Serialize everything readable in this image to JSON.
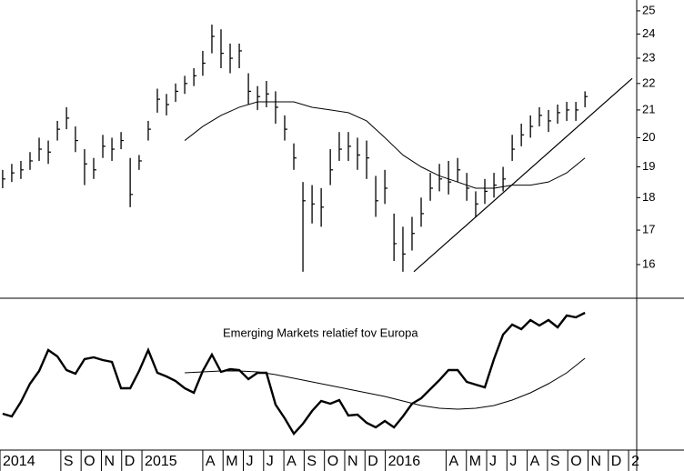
{
  "chart_data": [
    {
      "type": "ohlc",
      "log": true,
      "xlim": [
        -7,
        24.4
      ],
      "ylim": [
        15.08,
        25.48
      ],
      "yticks": [
        16,
        17,
        18,
        19,
        20,
        21,
        22,
        23,
        24,
        25
      ],
      "color": "#000000",
      "x": [
        -6.87,
        -6.42,
        -5.97,
        -5.52,
        -5.07,
        -4.62,
        -4.17,
        -3.72,
        -3.28,
        -2.83,
        -2.38,
        -1.93,
        -1.48,
        -1.03,
        -0.58,
        -0.14,
        0.31,
        0.76,
        1.21,
        1.66,
        2.11,
        2.56,
        3.0,
        3.45,
        3.9,
        4.35,
        4.8,
        5.25,
        5.7,
        6.14,
        6.59,
        7.04,
        7.49,
        7.94,
        8.39,
        8.84,
        9.29,
        9.73,
        10.18,
        10.63,
        11.08,
        11.53,
        11.98,
        12.43,
        12.87,
        13.32,
        13.77,
        14.22,
        14.67,
        15.12,
        15.57,
        16.02,
        16.46,
        16.91,
        17.36,
        17.81,
        18.26,
        18.71,
        19.16,
        19.6,
        20.05,
        20.5,
        20.95,
        21.4,
        21.85
      ],
      "high": [
        18.9,
        19.1,
        19.2,
        19.5,
        20.0,
        19.9,
        20.6,
        21.1,
        20.4,
        19.6,
        19.3,
        20.1,
        20.0,
        20.2,
        19.3,
        19.4,
        20.6,
        21.8,
        21.6,
        22.0,
        22.3,
        22.6,
        23.3,
        24.4,
        24.2,
        23.6,
        23.6,
        22.4,
        21.9,
        22.1,
        21.7,
        20.8,
        19.8,
        18.5,
        18.4,
        18.3,
        19.6,
        20.2,
        20.2,
        20.0,
        19.9,
        18.7,
        18.9,
        17.5,
        17.1,
        17.4,
        18.0,
        18.8,
        19.1,
        19.2,
        19.3,
        18.8,
        18.2,
        18.6,
        18.8,
        19.0,
        20.1,
        20.5,
        20.8,
        21.1,
        21.0,
        21.2,
        21.3,
        21.3,
        21.7
      ],
      "low": [
        18.3,
        18.5,
        18.6,
        18.9,
        19.2,
        19.1,
        19.9,
        20.3,
        19.5,
        18.4,
        18.6,
        19.3,
        19.2,
        19.6,
        17.7,
        18.9,
        19.9,
        20.9,
        20.8,
        21.3,
        21.6,
        21.9,
        22.3,
        23.2,
        22.6,
        22.4,
        22.6,
        21.2,
        21.0,
        21.1,
        20.5,
        19.9,
        18.9,
        15.8,
        17.2,
        17.1,
        18.4,
        19.2,
        19.2,
        18.9,
        18.6,
        17.4,
        17.8,
        16.1,
        15.8,
        16.4,
        17.1,
        17.9,
        18.2,
        18.1,
        18.5,
        17.9,
        17.4,
        17.8,
        18.0,
        18.2,
        19.2,
        19.7,
        20.0,
        20.4,
        20.2,
        20.5,
        20.6,
        20.6,
        21.1
      ],
      "close": [
        18.6,
        18.8,
        18.9,
        19.2,
        19.6,
        19.5,
        20.3,
        20.7,
        19.9,
        19.1,
        18.9,
        19.7,
        19.6,
        19.9,
        18.1,
        19.2,
        20.3,
        21.4,
        21.2,
        21.7,
        22.0,
        22.3,
        22.8,
        23.9,
        23.2,
        23.0,
        23.3,
        21.7,
        21.5,
        21.6,
        21.1,
        20.3,
        19.3,
        17.9,
        17.8,
        17.7,
        18.9,
        19.6,
        19.7,
        19.4,
        19.3,
        17.9,
        18.3,
        16.6,
        16.3,
        16.9,
        17.5,
        18.3,
        18.6,
        18.5,
        18.9,
        18.3,
        17.8,
        18.2,
        18.4,
        18.6,
        19.6,
        20.1,
        20.4,
        20.8,
        20.6,
        20.9,
        21.0,
        21.0,
        21.5
      ],
      "ma": {
        "x": [
          2.11,
          3.0,
          3.9,
          4.8,
          5.7,
          6.59,
          7.49,
          8.39,
          9.29,
          10.18,
          11.08,
          11.98,
          12.87,
          13.77,
          14.67,
          15.57,
          16.46,
          17.36,
          18.26,
          19.16,
          20.05,
          20.95,
          21.85
        ],
        "values": [
          19.9,
          20.4,
          20.8,
          21.1,
          21.3,
          21.3,
          21.3,
          21.1,
          21.0,
          20.9,
          20.6,
          20.0,
          19.4,
          19.0,
          18.7,
          18.5,
          18.3,
          18.3,
          18.4,
          18.4,
          18.5,
          18.8,
          19.3
        ]
      },
      "trendline": {
        "x": [
          13.41,
          24.18
        ],
        "values": [
          15.8,
          22.2
        ]
      }
    },
    {
      "type": "line",
      "annotation": "Emerging Markets relatief tov Europa",
      "xlim": [
        -7,
        24.4
      ],
      "ylim": [
        0,
        160
      ],
      "color": "#000000",
      "x": [
        -6.87,
        -6.42,
        -5.97,
        -5.52,
        -5.07,
        -4.62,
        -4.17,
        -3.72,
        -3.28,
        -2.83,
        -2.38,
        -1.93,
        -1.48,
        -1.03,
        -0.58,
        -0.14,
        0.31,
        0.76,
        1.21,
        1.66,
        2.11,
        2.56,
        3.0,
        3.45,
        3.9,
        4.35,
        4.8,
        5.25,
        5.7,
        6.14,
        6.59,
        7.04,
        7.49,
        7.94,
        8.39,
        8.84,
        9.29,
        9.73,
        10.18,
        10.63,
        11.08,
        11.53,
        11.98,
        12.43,
        12.87,
        13.32,
        13.77,
        14.22,
        14.67,
        15.12,
        15.57,
        16.02,
        16.46,
        16.91,
        17.36,
        17.81,
        18.26,
        18.71,
        19.16,
        19.6,
        20.05,
        20.5,
        20.95,
        21.4,
        21.85
      ],
      "values": [
        35,
        32,
        48,
        68,
        82,
        105,
        98,
        83,
        79,
        95,
        97,
        94,
        92,
        63,
        63,
        82,
        105,
        80,
        76,
        71,
        63,
        58,
        82,
        100,
        81,
        84,
        83,
        73,
        80,
        80,
        45,
        30,
        13,
        24,
        38,
        49,
        46,
        50,
        33,
        34,
        25,
        20,
        27,
        20,
        32,
        46,
        52,
        62,
        72,
        83,
        83,
        70,
        67,
        64,
        95,
        122,
        133,
        128,
        138,
        132,
        138,
        130,
        143,
        141,
        146
      ],
      "ma": {
        "x": [
          2.11,
          3.0,
          3.9,
          4.8,
          5.7,
          6.59,
          7.49,
          8.39,
          9.29,
          10.18,
          11.08,
          11.98,
          12.87,
          13.77,
          14.67,
          15.57,
          16.46,
          17.36,
          18.26,
          19.16,
          20.05,
          20.95,
          21.85
        ],
        "values": [
          80,
          81,
          82,
          82,
          81,
          78,
          74,
          70,
          66,
          62,
          58,
          54,
          49,
          44,
          41,
          40,
          41,
          44,
          50,
          58,
          68,
          80,
          96
        ]
      },
      "xticks": [
        {
          "value": -7,
          "label": "2014"
        },
        {
          "value": -4,
          "label": "S"
        },
        {
          "value": -3,
          "label": "O"
        },
        {
          "value": -2,
          "label": "N"
        },
        {
          "value": -1,
          "label": "D"
        },
        {
          "value": 0,
          "label": "2015"
        },
        {
          "value": 3,
          "label": "A"
        },
        {
          "value": 4,
          "label": "M"
        },
        {
          "value": 5,
          "label": "J"
        },
        {
          "value": 6,
          "label": "J"
        },
        {
          "value": 7,
          "label": "A"
        },
        {
          "value": 8,
          "label": "S"
        },
        {
          "value": 9,
          "label": "O"
        },
        {
          "value": 10,
          "label": "N"
        },
        {
          "value": 11,
          "label": "D"
        },
        {
          "value": 12,
          "label": "2016"
        },
        {
          "value": 15,
          "label": "A"
        },
        {
          "value": 16,
          "label": "M"
        },
        {
          "value": 17,
          "label": "J"
        },
        {
          "value": 18,
          "label": "J"
        },
        {
          "value": 19,
          "label": "A"
        },
        {
          "value": 20,
          "label": "S"
        },
        {
          "value": 21,
          "label": "O"
        },
        {
          "value": 22,
          "label": "N"
        },
        {
          "value": 23,
          "label": "D"
        },
        {
          "value": 24,
          "label": "2"
        }
      ]
    }
  ]
}
